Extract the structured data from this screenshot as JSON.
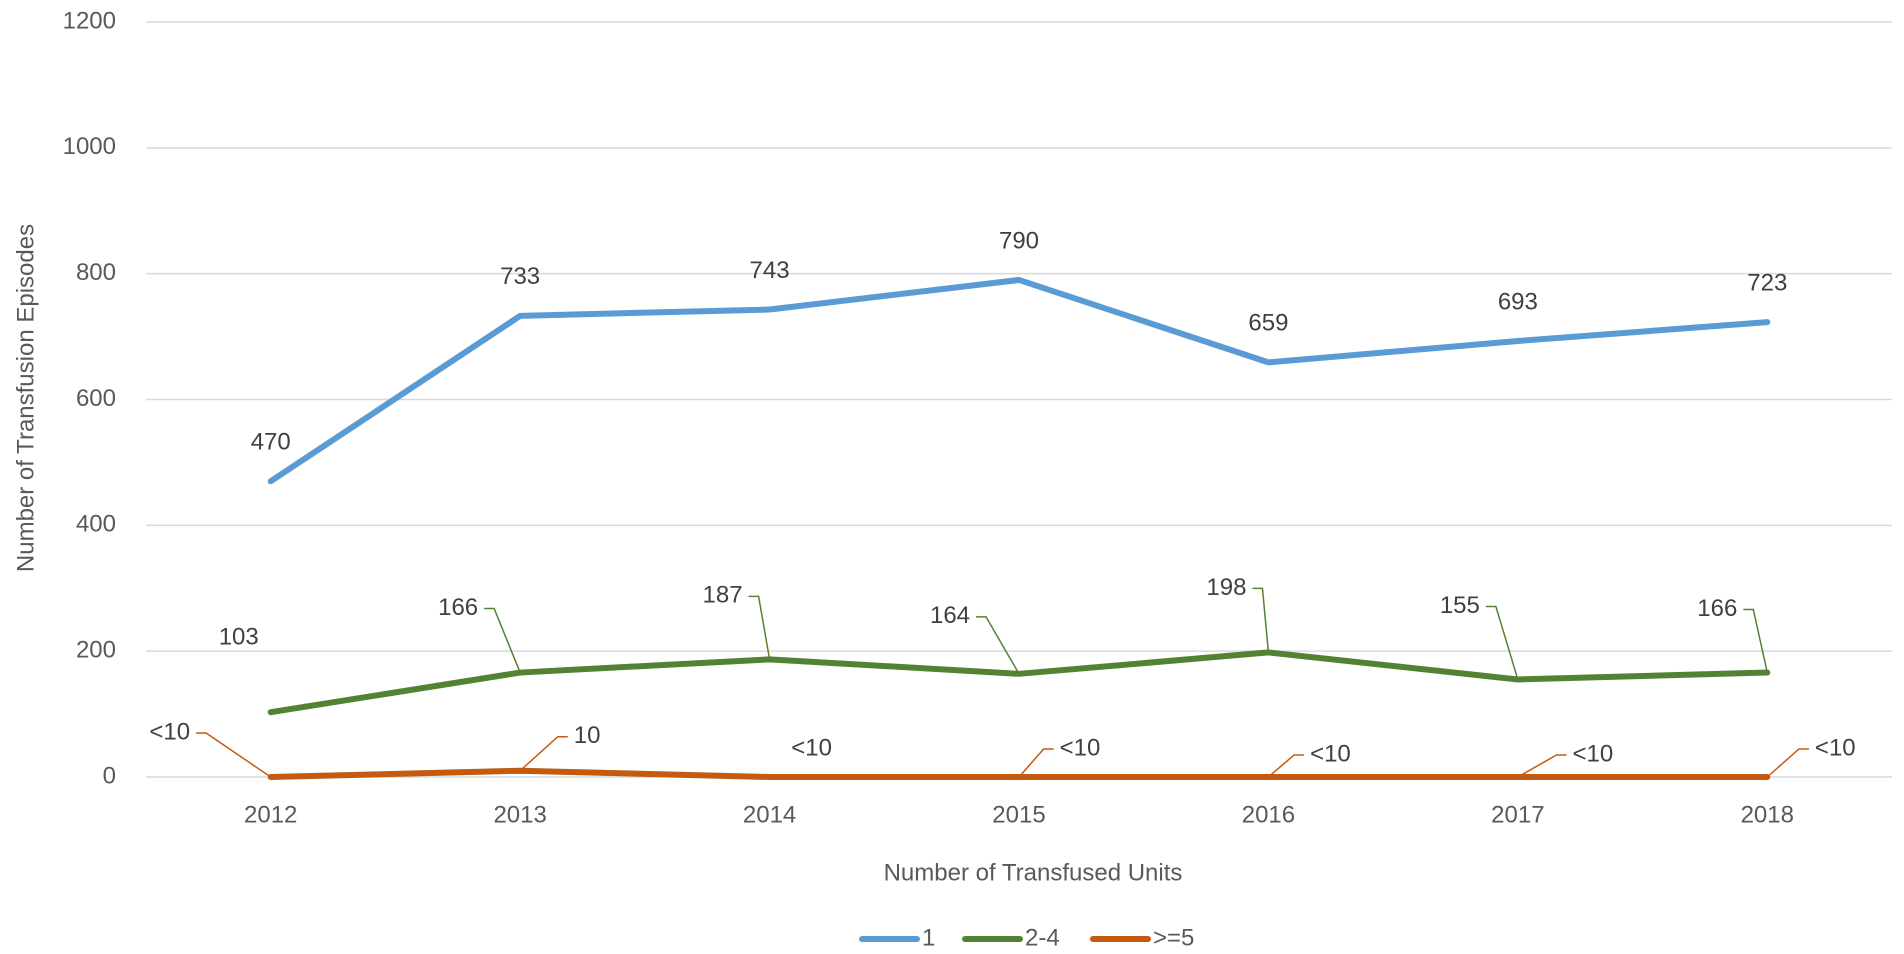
{
  "chart_data": {
    "type": "line",
    "x_label": "Number of Transfused Units",
    "y_label": "Number of Transfusion Episodes",
    "categories": [
      "2012",
      "2013",
      "2014",
      "2015",
      "2016",
      "2017",
      "2018"
    ],
    "series": [
      {
        "name": "1",
        "color": "#5b9bd5",
        "values": [
          470,
          733,
          743,
          790,
          659,
          693,
          723
        ]
      },
      {
        "name": "2-4",
        "color": "#548235",
        "values": [
          103,
          166,
          187,
          164,
          198,
          155,
          166
        ]
      },
      {
        "name": ">=5",
        "color": "#c55a11",
        "values": [
          0,
          10,
          0,
          0,
          0,
          0,
          0
        ],
        "value_labels": [
          "<10",
          "10",
          "<10",
          "<10",
          "<10",
          "<10",
          "<10"
        ]
      }
    ],
    "ylim": [
      0,
      1200
    ],
    "yticks": [
      0,
      200,
      400,
      600,
      800,
      1000,
      1200
    ],
    "grid": true,
    "legend": "bottom"
  }
}
